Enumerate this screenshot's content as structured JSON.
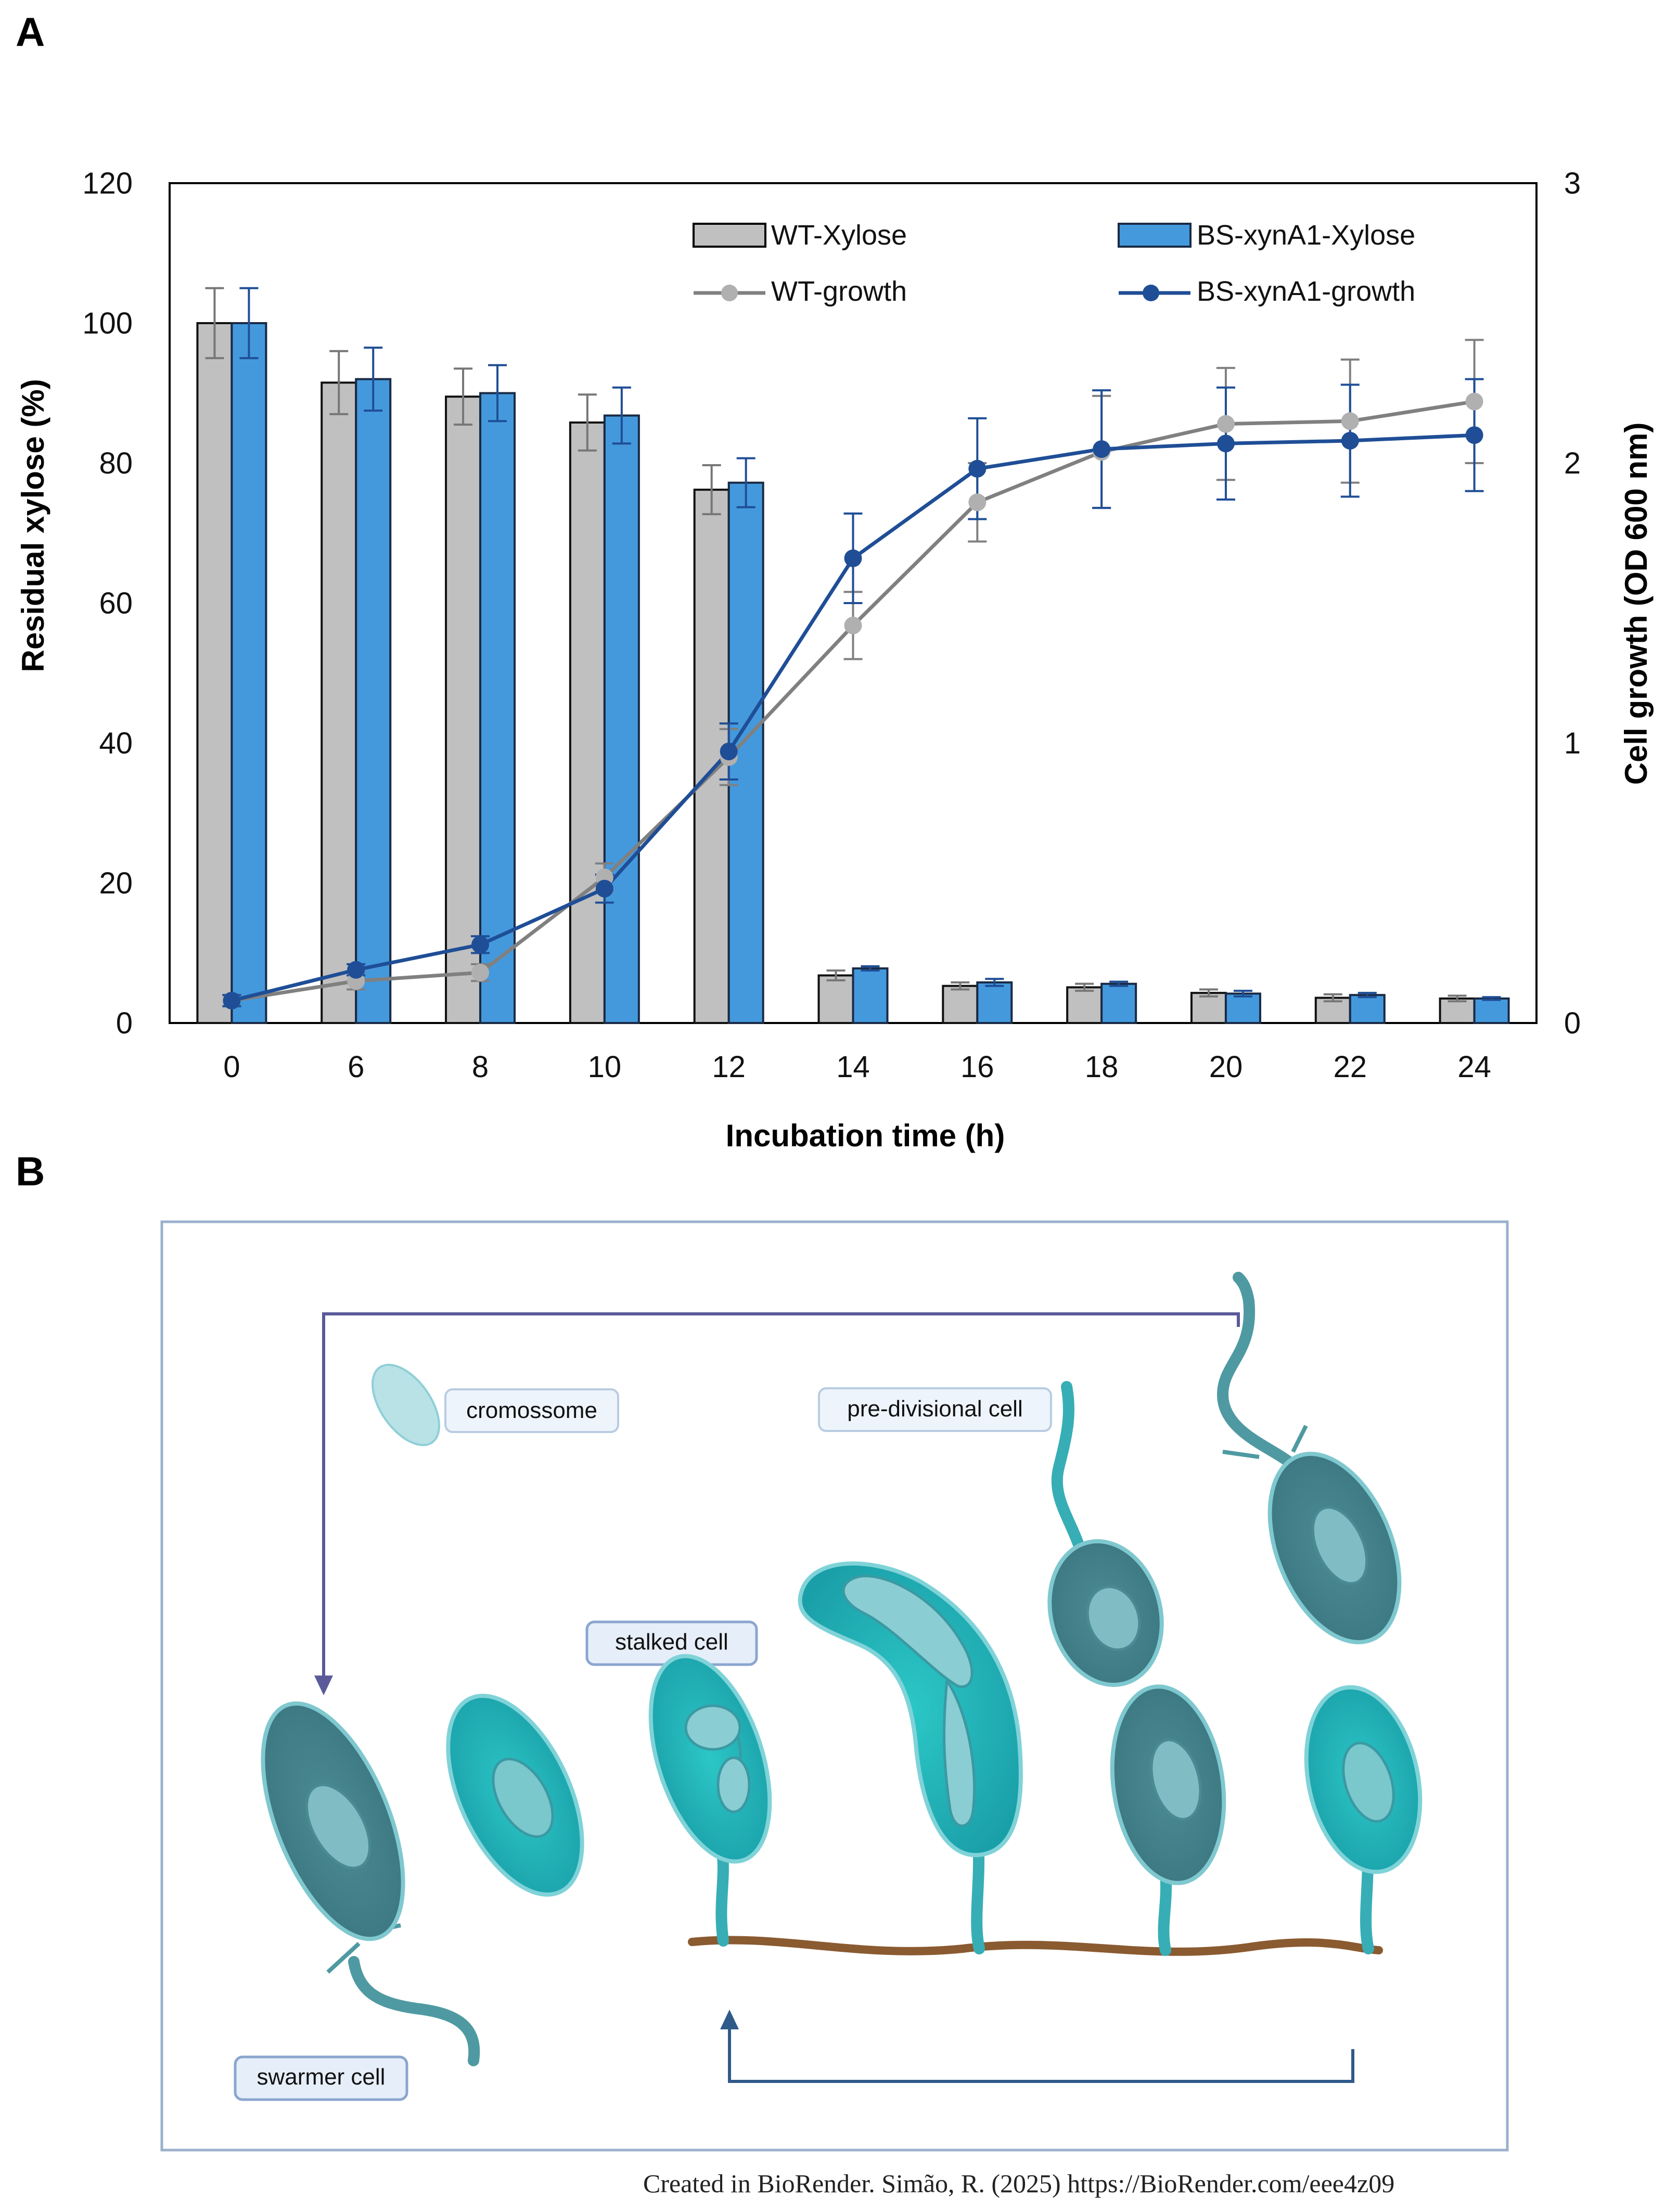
{
  "panel_a": {
    "label": "A"
  },
  "panel_b": {
    "label": "B",
    "labels": {
      "cromossome": "cromossome",
      "predivisional": "pre-divisional cell",
      "stalked": "stalked cell",
      "swarmer": "swarmer cell"
    },
    "credit": "Created in BioRender. Simão, R. (2025) https://BioRender.com/eee4z09"
  },
  "chart_data": {
    "type": "bar",
    "xlabel": "Incubation time (h)",
    "ylabel": "Residual xylose (%)",
    "y2label": "Cell growth (OD 600 nm)",
    "categories": [
      "0",
      "6",
      "8",
      "10",
      "12",
      "14",
      "16",
      "18",
      "20",
      "22",
      "24"
    ],
    "ylim": [
      0,
      120
    ],
    "yticks": [
      0,
      20,
      40,
      60,
      80,
      100,
      120
    ],
    "y2lim": [
      0,
      3
    ],
    "y2ticks": [
      0,
      1,
      2,
      3
    ],
    "legend_position": "top-right",
    "series": [
      {
        "name": "WT-Xylose",
        "kind": "bar",
        "axis": "left",
        "color": "#c0c0c0",
        "values": [
          100,
          91.5,
          89.5,
          85.8,
          76.2,
          6.8,
          5.3,
          5.1,
          4.3,
          3.6,
          3.5
        ],
        "errors": [
          5,
          4.5,
          4,
          4,
          3.5,
          0.7,
          0.5,
          0.5,
          0.5,
          0.5,
          0.4
        ]
      },
      {
        "name": "BS-xynA1-Xylose",
        "kind": "bar",
        "axis": "left",
        "color": "#4499dd",
        "values": [
          100,
          92,
          90,
          86.8,
          77.2,
          7.8,
          5.8,
          5.6,
          4.2,
          4,
          3.5
        ],
        "errors": [
          5,
          4.5,
          4,
          4,
          3.5,
          0.3,
          0.5,
          0.3,
          0.4,
          0.3,
          0.2
        ]
      },
      {
        "name": "WT-growth",
        "kind": "line",
        "axis": "right",
        "color": "#808080",
        "marker_color": "#b0b0b0",
        "values": [
          0.08,
          0.15,
          0.18,
          0.52,
          0.95,
          1.42,
          1.86,
          2.04,
          2.14,
          2.15,
          2.22
        ],
        "errors": [
          0.02,
          0.03,
          0.03,
          0.05,
          0.1,
          0.12,
          0.14,
          0.2,
          0.2,
          0.22,
          0.22
        ]
      },
      {
        "name": "BS-xynA1-growth",
        "kind": "line",
        "axis": "right",
        "color": "#1f4e96",
        "marker_color": "#1f4e96",
        "values": [
          0.08,
          0.19,
          0.28,
          0.48,
          0.97,
          1.66,
          1.98,
          2.05,
          2.07,
          2.08,
          2.1
        ],
        "errors": [
          0.02,
          0.02,
          0.03,
          0.05,
          0.1,
          0.16,
          0.18,
          0.21,
          0.2,
          0.2,
          0.2
        ]
      }
    ]
  }
}
